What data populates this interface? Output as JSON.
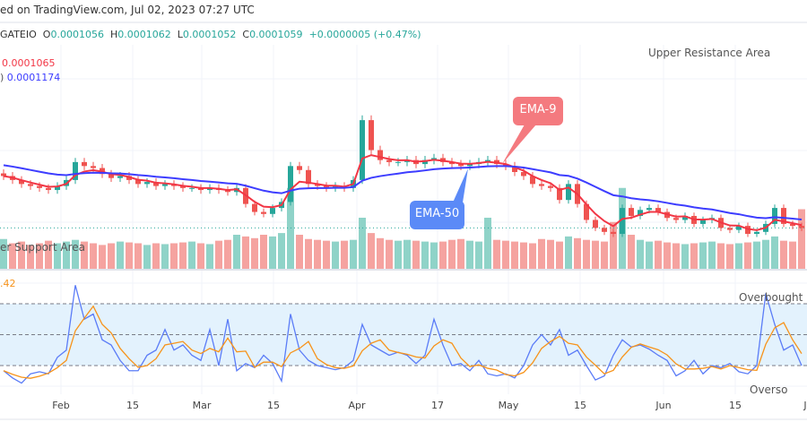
{
  "header": {
    "published": "ed on TradingView.com, Jul 02, 2023 07:27 UTC"
  },
  "symbol": {
    "exchange": "GATEIO",
    "o_label": "O",
    "open": "0.0001056",
    "h_label": "H",
    "high": "0.0001062",
    "l_label": "L",
    "low": "0.0001052",
    "c_label": "C",
    "close": "0.0001059",
    "change": "+0.0000005 (+0.47%)"
  },
  "legend": {
    "ema9_value": "0.0001065",
    "ema50_prefix": ")",
    "ema50_value": "0.0001174",
    "stoch_value": ".42"
  },
  "annotations": {
    "upper": "Upper Resistance Area",
    "lower": "er Support Area",
    "overbought": "Overbought R",
    "oversold": "Overso",
    "ema9": "EMA-9",
    "ema50": "EMA-50"
  },
  "colors": {
    "up": "#26a69a",
    "down": "#ef5350",
    "ema9": "#f23645",
    "ema50": "#3d3dff",
    "k": "#5b7cf7",
    "d": "#f7931a",
    "band": "#e3f2fd",
    "ema9_callout": "#f47a7f",
    "ema50_callout": "#5b8af7"
  },
  "chart_data": [
    {
      "type": "candlestick",
      "title": "",
      "x_ticks": [
        "Feb",
        "15",
        "Mar",
        "15",
        "Apr",
        "17",
        "May",
        "15",
        "Jun",
        "15",
        "J"
      ],
      "close": [
        0.000132,
        0.00013,
        0.000128,
        0.000127,
        0.000126,
        0.000125,
        0.000127,
        0.00013,
        0.000139,
        0.000137,
        0.000136,
        0.000133,
        0.000131,
        0.000132,
        0.00013,
        0.000128,
        0.000129,
        0.000127,
        0.000128,
        0.000127,
        0.000126,
        0.000126,
        0.000125,
        0.000126,
        0.000125,
        0.000124,
        0.000126,
        0.000118,
        0.000114,
        0.000113,
        0.000116,
        0.000119,
        0.000137,
        0.000135,
        0.000128,
        0.000127,
        0.000126,
        0.000127,
        0.000126,
        0.00013,
        0.00016,
        0.000145,
        0.00014,
        0.000139,
        0.000139,
        0.00014,
        0.000138,
        0.00014,
        0.000141,
        0.000139,
        0.000138,
        0.000137,
        0.000138,
        0.000139,
        0.00014,
        0.000138,
        0.000137,
        0.000134,
        0.000132,
        0.000128,
        0.000127,
        0.000126,
        0.00012,
        0.000128,
        0.000118,
        0.00011,
        0.000106,
        0.000104,
        0.000103,
        0.000116,
        0.000112,
        0.000115,
        0.000116,
        0.000114,
        0.000111,
        0.00011,
        0.000112,
        0.000108,
        0.00011,
        0.000111,
        0.000106,
        0.000105,
        0.000107,
        0.000103,
        0.000104,
        0.000108,
        0.000116,
        0.000108,
        0.000107,
        0.000106
      ],
      "volume": [
        35,
        30,
        32,
        28,
        30,
        33,
        30,
        32,
        34,
        32,
        30,
        28,
        30,
        32,
        31,
        30,
        28,
        30,
        29,
        30,
        31,
        32,
        30,
        29,
        33,
        34,
        40,
        38,
        36,
        40,
        38,
        42,
        95,
        40,
        35,
        34,
        33,
        32,
        33,
        34,
        60,
        42,
        36,
        34,
        33,
        34,
        33,
        32,
        31,
        32,
        34,
        35,
        33,
        32,
        60,
        34,
        33,
        32,
        31,
        30,
        35,
        34,
        32,
        38,
        36,
        34,
        33,
        32,
        55,
        95,
        40,
        34,
        32,
        33,
        31,
        30,
        29,
        30,
        31,
        32,
        30,
        29,
        30,
        31,
        32,
        34,
        38,
        33,
        32,
        70
      ],
      "overlays": [
        {
          "name": "EMA-9",
          "period": 9
        },
        {
          "name": "EMA-50",
          "period": 50
        }
      ],
      "annotations": [
        "Upper Resistance Area",
        "er Support Area"
      ]
    },
    {
      "type": "line",
      "title": "",
      "ylim": [
        0,
        100
      ],
      "levels": [
        20,
        50,
        80
      ],
      "k": [
        15,
        8,
        3,
        12,
        14,
        12,
        28,
        35,
        98,
        65,
        70,
        45,
        40,
        25,
        15,
        15,
        30,
        35,
        55,
        35,
        40,
        30,
        25,
        55,
        20,
        65,
        15,
        22,
        18,
        30,
        22,
        5,
        70,
        35,
        25,
        20,
        18,
        16,
        18,
        25,
        60,
        40,
        35,
        30,
        33,
        30,
        22,
        30,
        65,
        40,
        20,
        22,
        15,
        25,
        12,
        10,
        12,
        8,
        20,
        40,
        50,
        40,
        55,
        30,
        35,
        20,
        6,
        10,
        30,
        45,
        38,
        40,
        36,
        30,
        25,
        10,
        15,
        25,
        12,
        20,
        18,
        22,
        14,
        12,
        20,
        90,
        60,
        35,
        40,
        20
      ],
      "annotations": [
        "Overbought R",
        "Overso"
      ]
    }
  ]
}
